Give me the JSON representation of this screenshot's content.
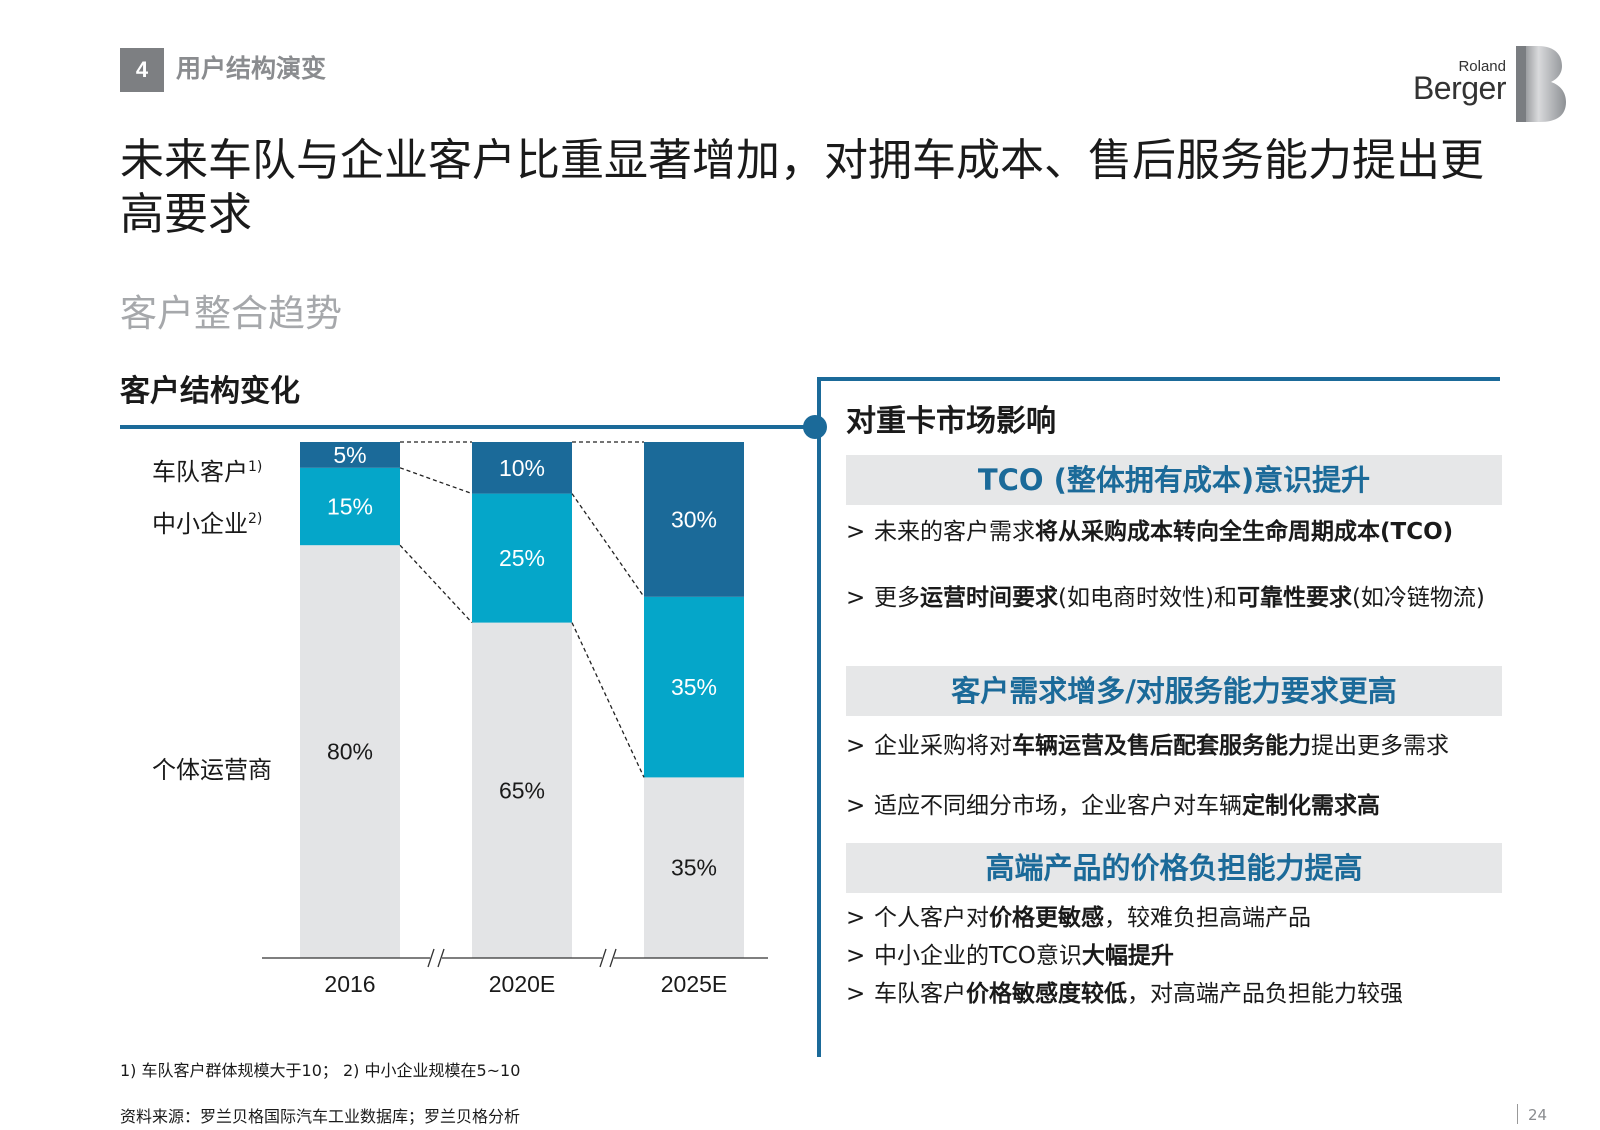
{
  "header": {
    "section_number": "4",
    "section_title": "用户结构演变",
    "logo_top": "Roland",
    "logo_bottom": "Berger"
  },
  "title": "未来车队与企业客户比重显著增加，对拥车成本、售后服务能力提出更高要求",
  "subheading": "客户整合趋势",
  "left": {
    "heading": "客户结构变化",
    "row_labels": {
      "fleet": "车队客户",
      "fleet_sup": "1)",
      "sme": "中小企业",
      "sme_sup": "2)",
      "individual": "个体运营商"
    }
  },
  "chart_data": {
    "type": "bar",
    "stacked": true,
    "categories": [
      "2016",
      "2020E",
      "2025E"
    ],
    "series": [
      {
        "name": "个体运营商",
        "values": [
          80,
          65,
          35
        ],
        "color": "#e3e4e6",
        "text_color": "#1a1a1a"
      },
      {
        "name": "中小企业",
        "values": [
          15,
          25,
          35
        ],
        "color": "#05a6c9",
        "text_color": "#ffffff"
      },
      {
        "name": "车队客户",
        "values": [
          5,
          10,
          30
        ],
        "color": "#1b6a99",
        "text_color": "#ffffff"
      }
    ],
    "labels": [
      [
        "80%",
        "15%",
        "5%"
      ],
      [
        "65%",
        "25%",
        "10%"
      ],
      [
        "35%",
        "35%",
        "30%"
      ]
    ],
    "ylim": [
      0,
      100
    ],
    "axis_breaks": true
  },
  "right": {
    "heading": "对重卡市场影响",
    "sections": [
      {
        "title": "TCO (整体拥有成本)意识提升",
        "bullets": [
          {
            "marker": ">",
            "parts": [
              {
                "t": "未来的客户需求"
              },
              {
                "t": "将从采购成本转向全生命周期成本(TCO)",
                "b": true
              }
            ]
          },
          {
            "marker": ">",
            "parts": [
              {
                "t": "更多"
              },
              {
                "t": "运营时间要求",
                "b": true
              },
              {
                "t": "(如电商时效性)和"
              },
              {
                "t": "可靠性要求",
                "b": true
              },
              {
                "t": "(如冷链物流)"
              }
            ]
          }
        ]
      },
      {
        "title": "客户需求增多/对服务能力要求更高",
        "bullets": [
          {
            "marker": ">",
            "parts": [
              {
                "t": "企业采购将对"
              },
              {
                "t": "车辆运营及售后配套服务能力",
                "b": true
              },
              {
                "t": "提出更多需求"
              }
            ]
          },
          {
            "marker": ">",
            "parts": [
              {
                "t": "适应不同细分市场，企业客户对车辆"
              },
              {
                "t": "定制化需求高",
                "b": true
              }
            ]
          }
        ]
      },
      {
        "title": "高端产品的价格负担能力提高",
        "bullets": [
          {
            "marker": ">",
            "parts": [
              {
                "t": "个人客户对"
              },
              {
                "t": "价格更敏感",
                "b": true
              },
              {
                "t": "，较难负担高端产品"
              }
            ]
          },
          {
            "marker": ">",
            "parts": [
              {
                "t": "中小企业的TCO意识"
              },
              {
                "t": "大幅提升",
                "b": true
              }
            ]
          },
          {
            "marker": ">",
            "parts": [
              {
                "t": "车队客户"
              },
              {
                "t": "价格敏感度较低",
                "b": true
              },
              {
                "t": "，对高端产品负担能力较强"
              }
            ]
          }
        ]
      }
    ]
  },
  "footnote": "1) 车队客户群体规模大于10；  2) 中小企业规模在5~10",
  "source": "资料来源：罗兰贝格国际汽车工业数据库；罗兰贝格分析",
  "page_number": "24"
}
